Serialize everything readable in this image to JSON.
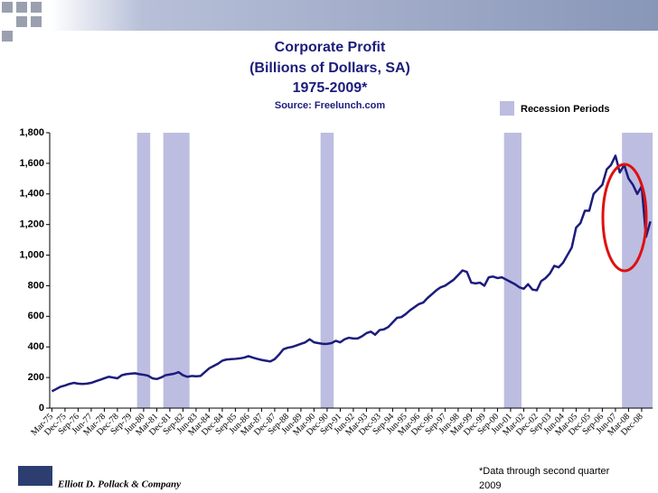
{
  "chart_data": {
    "type": "line",
    "title": [
      "Corporate Profit",
      "(Billions of Dollars, SA)",
      "1975-2009*"
    ],
    "subtitle": "Source: Freelunch.com",
    "legend_label": "Recession Periods",
    "footnote": [
      "*Data through second quarter",
      "2009"
    ],
    "company": "Elliott D. Pollack & Company",
    "color": "#1c1c7c",
    "recession_color": "#bcbde0",
    "recessions": [
      [
        20,
        22
      ],
      [
        26,
        31
      ],
      [
        62,
        64
      ],
      [
        104,
        107
      ],
      [
        131,
        137
      ]
    ],
    "ylim": [
      0,
      1800
    ],
    "yticks": [
      0,
      200,
      400,
      600,
      800,
      {
        "value": 1000,
        "label": "1,000"
      },
      {
        "value": 1200,
        "label": "1,200"
      },
      {
        "value": 1400,
        "label": "1,400"
      },
      {
        "value": 1600,
        "label": "1,600"
      },
      {
        "value": 1800,
        "label": "1,800"
      }
    ],
    "grid": false,
    "categories": [
      "Mar-75",
      null,
      null,
      "Dec-75",
      null,
      null,
      "Sep-76",
      null,
      null,
      "Jun-77",
      null,
      null,
      "Mar-78",
      null,
      null,
      "Dec-78",
      null,
      null,
      "Sep-79",
      null,
      null,
      "Jun-80",
      null,
      null,
      "Mar-81",
      null,
      null,
      "Dec-81",
      null,
      null,
      "Sep-82",
      null,
      null,
      "Jun-83",
      null,
      null,
      "Mar-84",
      null,
      null,
      "Dec-84",
      null,
      null,
      "Sep-85",
      null,
      null,
      "Jun-86",
      null,
      null,
      "Mar-87",
      null,
      null,
      "Dec-87",
      null,
      null,
      "Sep-88",
      null,
      null,
      "Jun-89",
      null,
      null,
      "Mar-90",
      null,
      null,
      "Dec-90",
      null,
      null,
      "Sep-91",
      null,
      null,
      "Jun-92",
      null,
      null,
      "Mar-93",
      null,
      null,
      "Dec-93",
      null,
      null,
      "Sep-94",
      null,
      null,
      "Jun-95",
      null,
      null,
      "Mar-96",
      null,
      null,
      "Dec-96",
      null,
      null,
      "Sep-97",
      null,
      null,
      "Jun-98",
      null,
      null,
      "Mar-99",
      null,
      null,
      "Dec-99",
      null,
      null,
      "Sep-00",
      null,
      null,
      "Jun-01",
      null,
      null,
      "Mar-02",
      null,
      null,
      "Dec-02",
      null,
      null,
      "Sep-03",
      null,
      null,
      "Jun-04",
      null,
      null,
      "Mar-05",
      null,
      null,
      "Dec-05",
      null,
      null,
      "Sep-06",
      null,
      null,
      "Jun-07",
      null,
      null,
      "Mar-08",
      null,
      null,
      "Dec-08",
      null,
      null
    ],
    "values": [
      110,
      125,
      140,
      148,
      158,
      165,
      160,
      158,
      160,
      165,
      175,
      185,
      195,
      205,
      200,
      195,
      215,
      222,
      225,
      228,
      222,
      218,
      212,
      195,
      190,
      200,
      215,
      220,
      225,
      235,
      215,
      205,
      210,
      208,
      210,
      235,
      260,
      275,
      290,
      310,
      318,
      320,
      322,
      325,
      330,
      340,
      330,
      322,
      315,
      310,
      305,
      320,
      350,
      385,
      395,
      400,
      410,
      420,
      430,
      450,
      430,
      425,
      420,
      420,
      425,
      440,
      430,
      450,
      460,
      455,
      455,
      470,
      490,
      500,
      480,
      510,
      515,
      530,
      560,
      590,
      595,
      615,
      640,
      660,
      680,
      690,
      720,
      745,
      770,
      790,
      800,
      820,
      840,
      870,
      900,
      890,
      820,
      815,
      820,
      800,
      855,
      860,
      850,
      855,
      840,
      825,
      810,
      790,
      780,
      810,
      775,
      770,
      830,
      850,
      880,
      930,
      920,
      950,
      1000,
      1050,
      1180,
      1210,
      1290,
      1290,
      1400,
      1430,
      1460,
      1560,
      1590,
      1650,
      1540,
      1590,
      1500,
      1460,
      1400,
      1450,
      1120,
      1220
    ]
  }
}
